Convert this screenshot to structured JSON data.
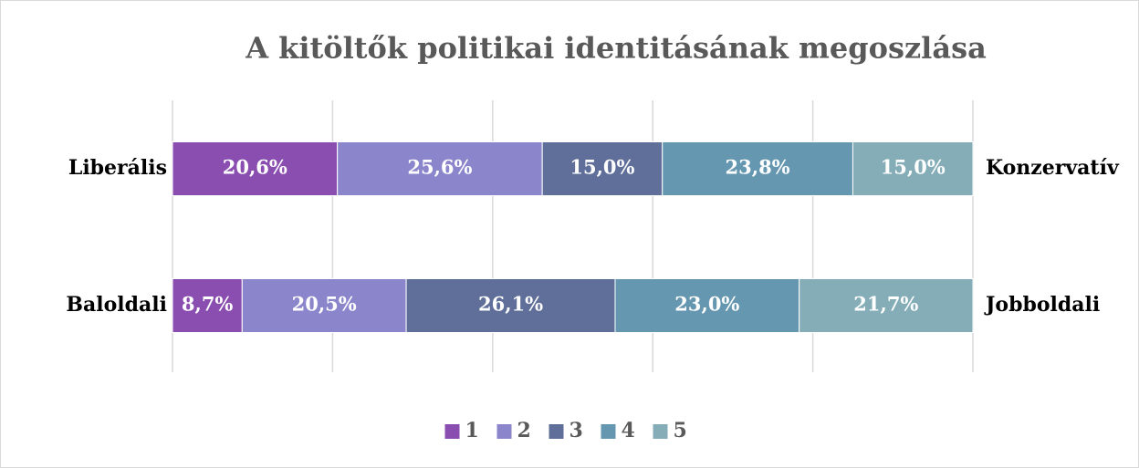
{
  "chart_data": {
    "type": "stacked-bar-horizontal",
    "title": "A kitöltők politikai identitásának megoszlása",
    "categories": [
      "Liberális",
      "Baloldali"
    ],
    "right_labels": [
      "Konzervatív",
      "Jobboldali"
    ],
    "series": [
      {
        "name": "1",
        "color": "#8a4db0",
        "values": [
          20.6,
          8.7
        ],
        "value_labels": [
          "20,6%",
          "8,7%"
        ]
      },
      {
        "name": "2",
        "color": "#8b86cc",
        "values": [
          25.6,
          20.5
        ],
        "value_labels": [
          "25,6%",
          "20,5%"
        ]
      },
      {
        "name": "3",
        "color": "#5f6f9a",
        "values": [
          15.0,
          26.1
        ],
        "value_labels": [
          "15,0%",
          "26,1%"
        ]
      },
      {
        "name": "4",
        "color": "#6697b0",
        "values": [
          23.8,
          23.0
        ],
        "value_labels": [
          "23,8%",
          "23,0%"
        ]
      },
      {
        "name": "5",
        "color": "#84adb8",
        "values": [
          15.0,
          21.7
        ],
        "value_labels": [
          "15,0%",
          "21,7%"
        ]
      }
    ],
    "xlim": [
      0,
      100
    ],
    "xticks": [
      0,
      20,
      40,
      60,
      80,
      100
    ],
    "grid": true,
    "legend": "bottom"
  }
}
